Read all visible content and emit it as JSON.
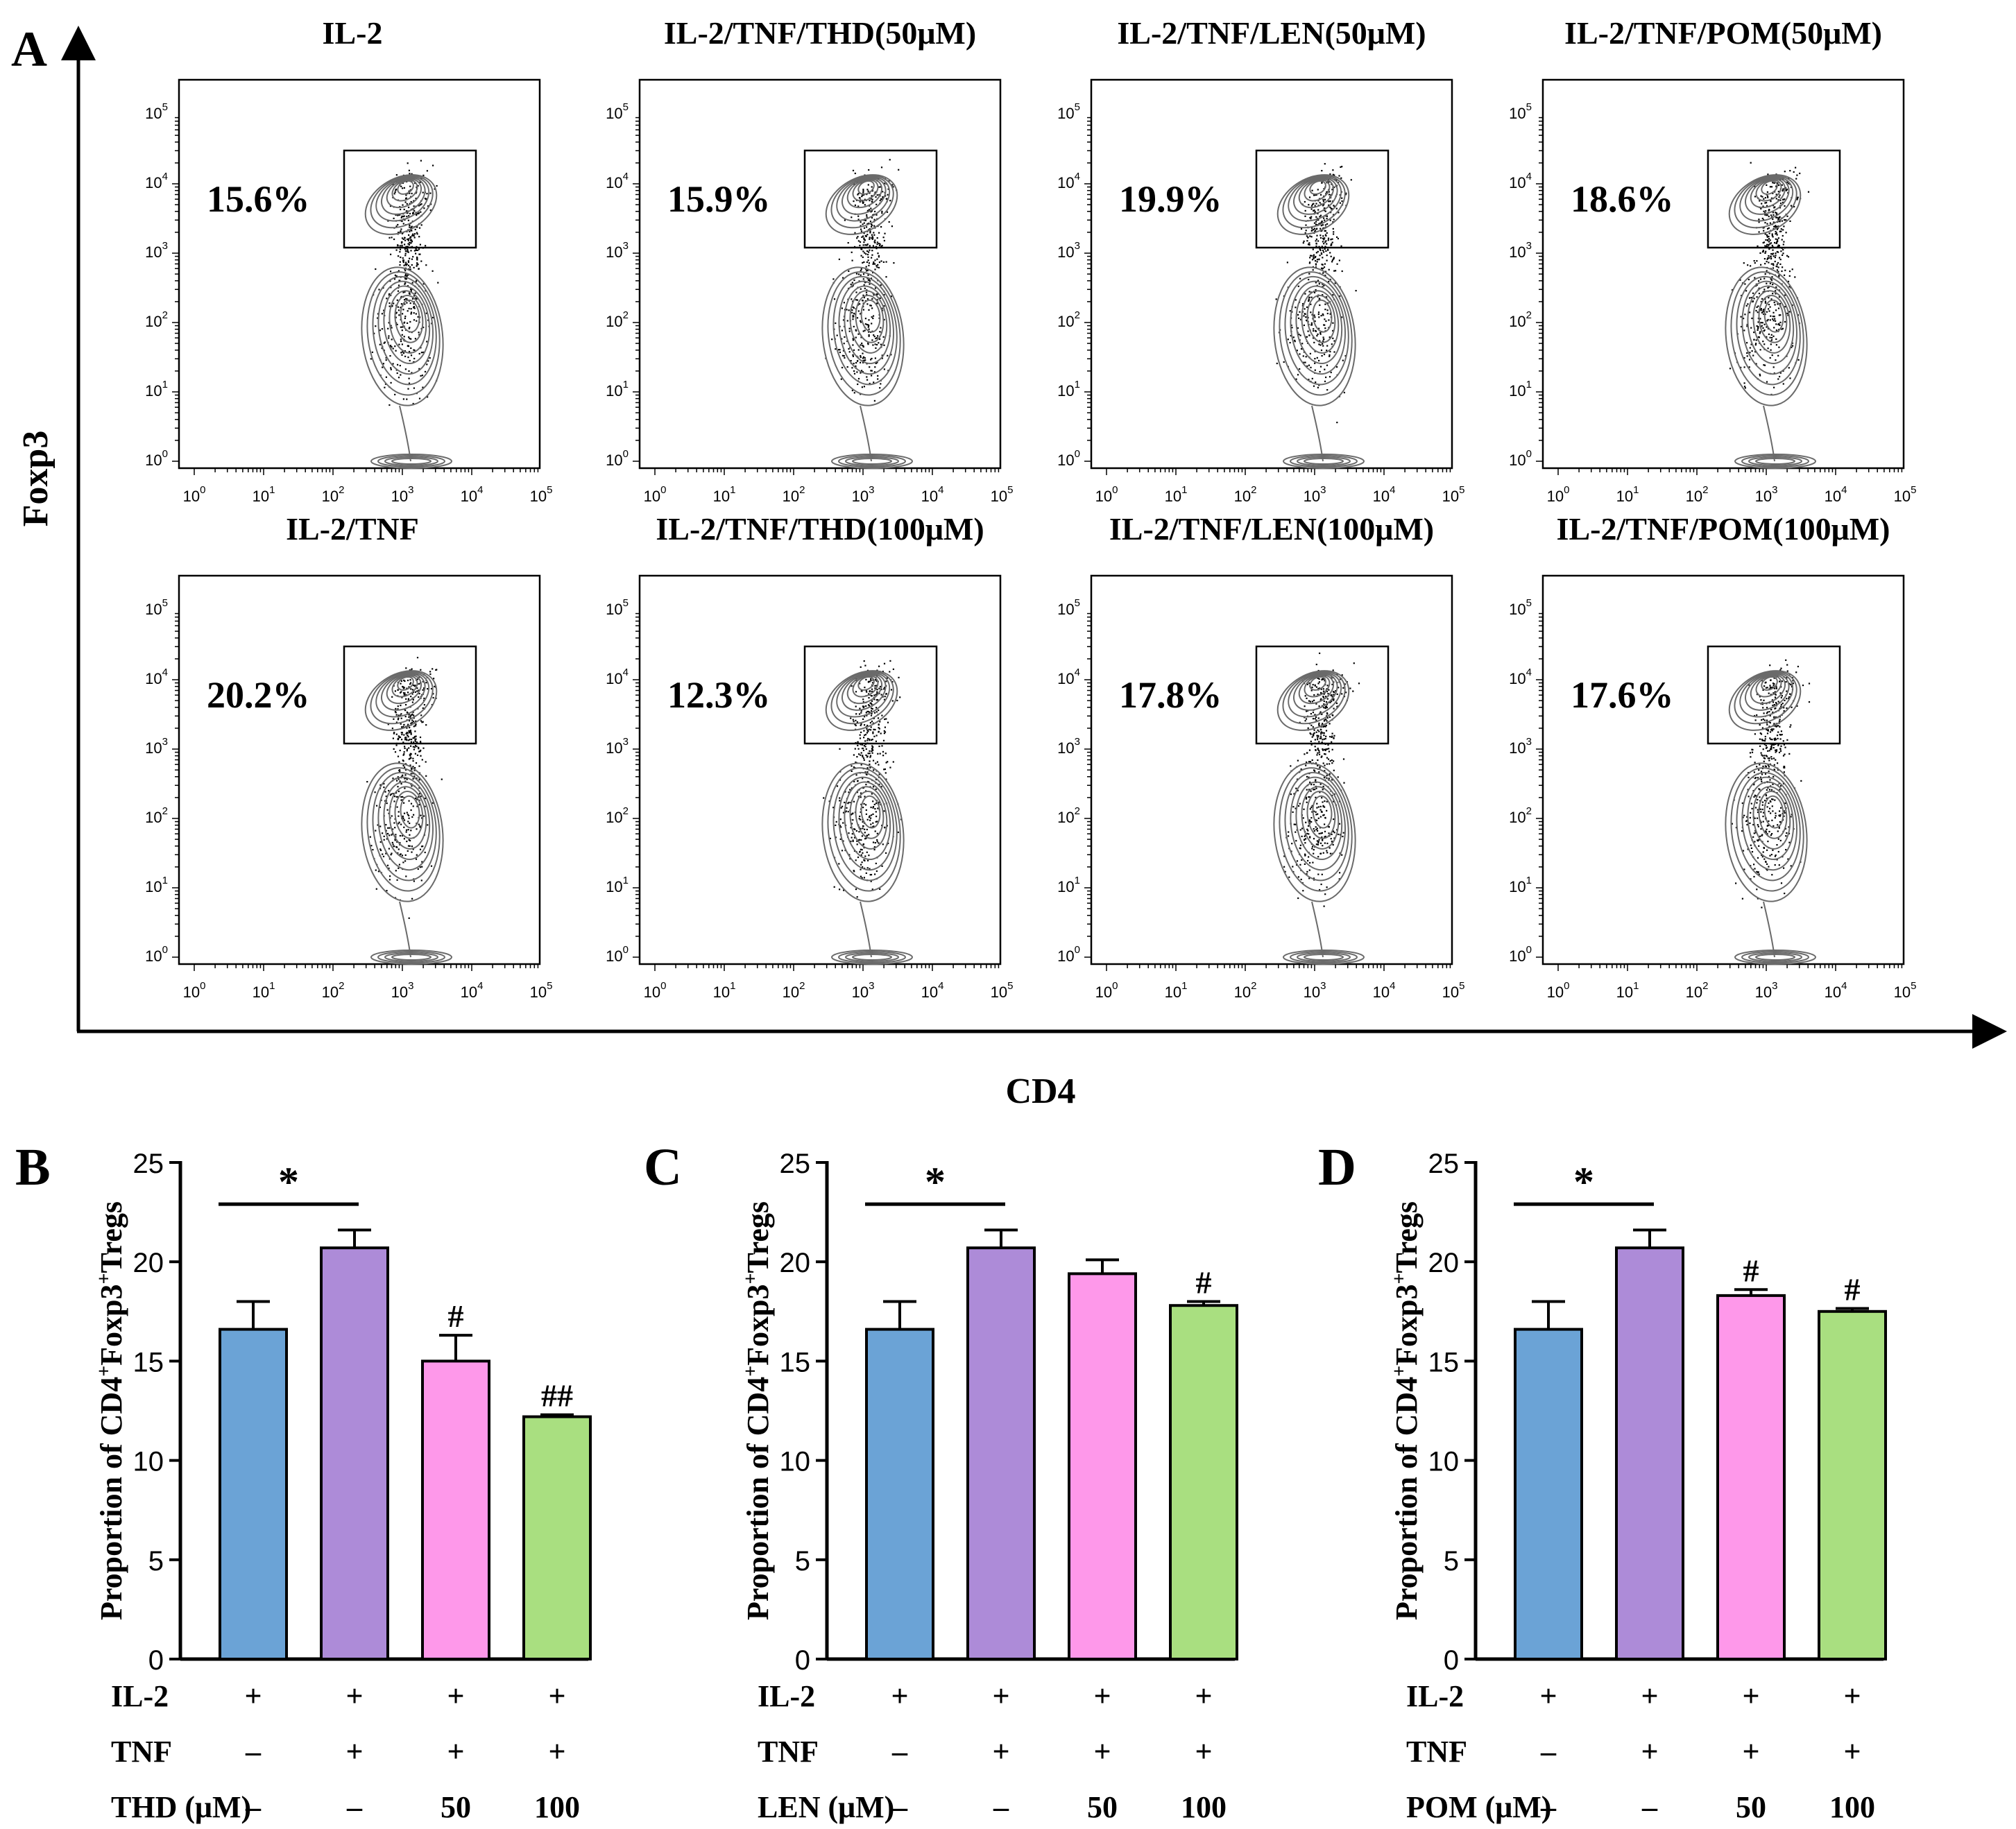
{
  "panel_letters": {
    "A": "A",
    "B": "B",
    "C": "C",
    "D": "D"
  },
  "colors": {
    "il2": "#6ba3d6",
    "tnf": "#ad8bd8",
    "p50": "#fe98ea",
    "p100": "#a9df80",
    "stroke": "#000000",
    "contour": "#6a6a6a"
  },
  "flow": {
    "y_axis_label": "Foxp3",
    "x_axis_label": "CD4",
    "tick_labels": [
      "10",
      "10",
      "10",
      "10",
      "10",
      "10"
    ],
    "tick_exps": [
      "0",
      "1",
      "2",
      "3",
      "4",
      "5"
    ],
    "plots": [
      {
        "title": "IL-2",
        "percent": "15.6%"
      },
      {
        "title": "IL-2/TNF/THD(50μM)",
        "percent": "15.9%"
      },
      {
        "title": "IL-2/TNF/LEN(50μM)",
        "percent": "19.9%"
      },
      {
        "title": "IL-2/TNF/POM(50μM)",
        "percent": "18.6%"
      },
      {
        "title": "IL-2/TNF",
        "percent": "20.2%"
      },
      {
        "title": "IL-2/TNF/THD(100μM)",
        "percent": "12.3%"
      },
      {
        "title": "IL-2/TNF/LEN(100μM)",
        "percent": "17.8%"
      },
      {
        "title": "IL-2/TNF/POM(100μM)",
        "percent": "17.6%"
      }
    ]
  },
  "chart_data": [
    {
      "type": "bar",
      "panel": "B",
      "ylabel_main": "Proportion of CD4",
      "ylabel_sup1": "+",
      "ylabel_mid": "Foxp3",
      "ylabel_sup2": "+",
      "ylabel_end": "Tregs",
      "ylim": [
        0,
        25
      ],
      "yticks": [
        "0",
        "5",
        "10",
        "15",
        "20",
        "25"
      ],
      "values": [
        16.6,
        20.7,
        15.0,
        12.2
      ],
      "errors": [
        1.4,
        0.9,
        1.3,
        0.1
      ],
      "marks": [
        "",
        "",
        "#",
        "##"
      ],
      "sig_label": "*",
      "rows": [
        {
          "label": "IL-2",
          "cells": [
            "+",
            "+",
            "+",
            "+"
          ]
        },
        {
          "label": "TNF",
          "cells": [
            "–",
            "+",
            "+",
            "+"
          ]
        },
        {
          "label": "THD (μM)",
          "cells": [
            "–",
            "–",
            "50",
            "100"
          ]
        }
      ]
    },
    {
      "type": "bar",
      "panel": "C",
      "ylabel_main": "Proportion of CD4",
      "ylabel_sup1": "+",
      "ylabel_mid": "Foxp3",
      "ylabel_sup2": "+",
      "ylabel_end": "Tregs",
      "ylim": [
        0,
        25
      ],
      "yticks": [
        "0",
        "5",
        "10",
        "15",
        "20",
        "25"
      ],
      "values": [
        16.6,
        20.7,
        19.4,
        17.8
      ],
      "errors": [
        1.4,
        0.9,
        0.7,
        0.2
      ],
      "marks": [
        "",
        "",
        "",
        "#"
      ],
      "sig_label": "*",
      "rows": [
        {
          "label": "IL-2",
          "cells": [
            "+",
            "+",
            "+",
            "+"
          ]
        },
        {
          "label": "TNF",
          "cells": [
            "–",
            "+",
            "+",
            "+"
          ]
        },
        {
          "label": "LEN (μM)",
          "cells": [
            "–",
            "–",
            "50",
            "100"
          ]
        }
      ]
    },
    {
      "type": "bar",
      "panel": "D",
      "ylabel_main": "Proportion of CD4",
      "ylabel_sup1": "+",
      "ylabel_mid": "Foxp3",
      "ylabel_sup2": "+",
      "ylabel_end": "Tregs",
      "ylim": [
        0,
        25
      ],
      "yticks": [
        "0",
        "5",
        "10",
        "15",
        "20",
        "25"
      ],
      "values": [
        16.6,
        20.7,
        18.3,
        17.5
      ],
      "errors": [
        1.4,
        0.9,
        0.3,
        0.15
      ],
      "marks": [
        "",
        "",
        "#",
        "#"
      ],
      "sig_label": "*",
      "rows": [
        {
          "label": "IL-2",
          "cells": [
            "+",
            "+",
            "+",
            "+"
          ]
        },
        {
          "label": "TNF",
          "cells": [
            "–",
            "+",
            "+",
            "+"
          ]
        },
        {
          "label": "POM (μM)",
          "cells": [
            "–",
            "–",
            "50",
            "100"
          ]
        }
      ]
    }
  ]
}
